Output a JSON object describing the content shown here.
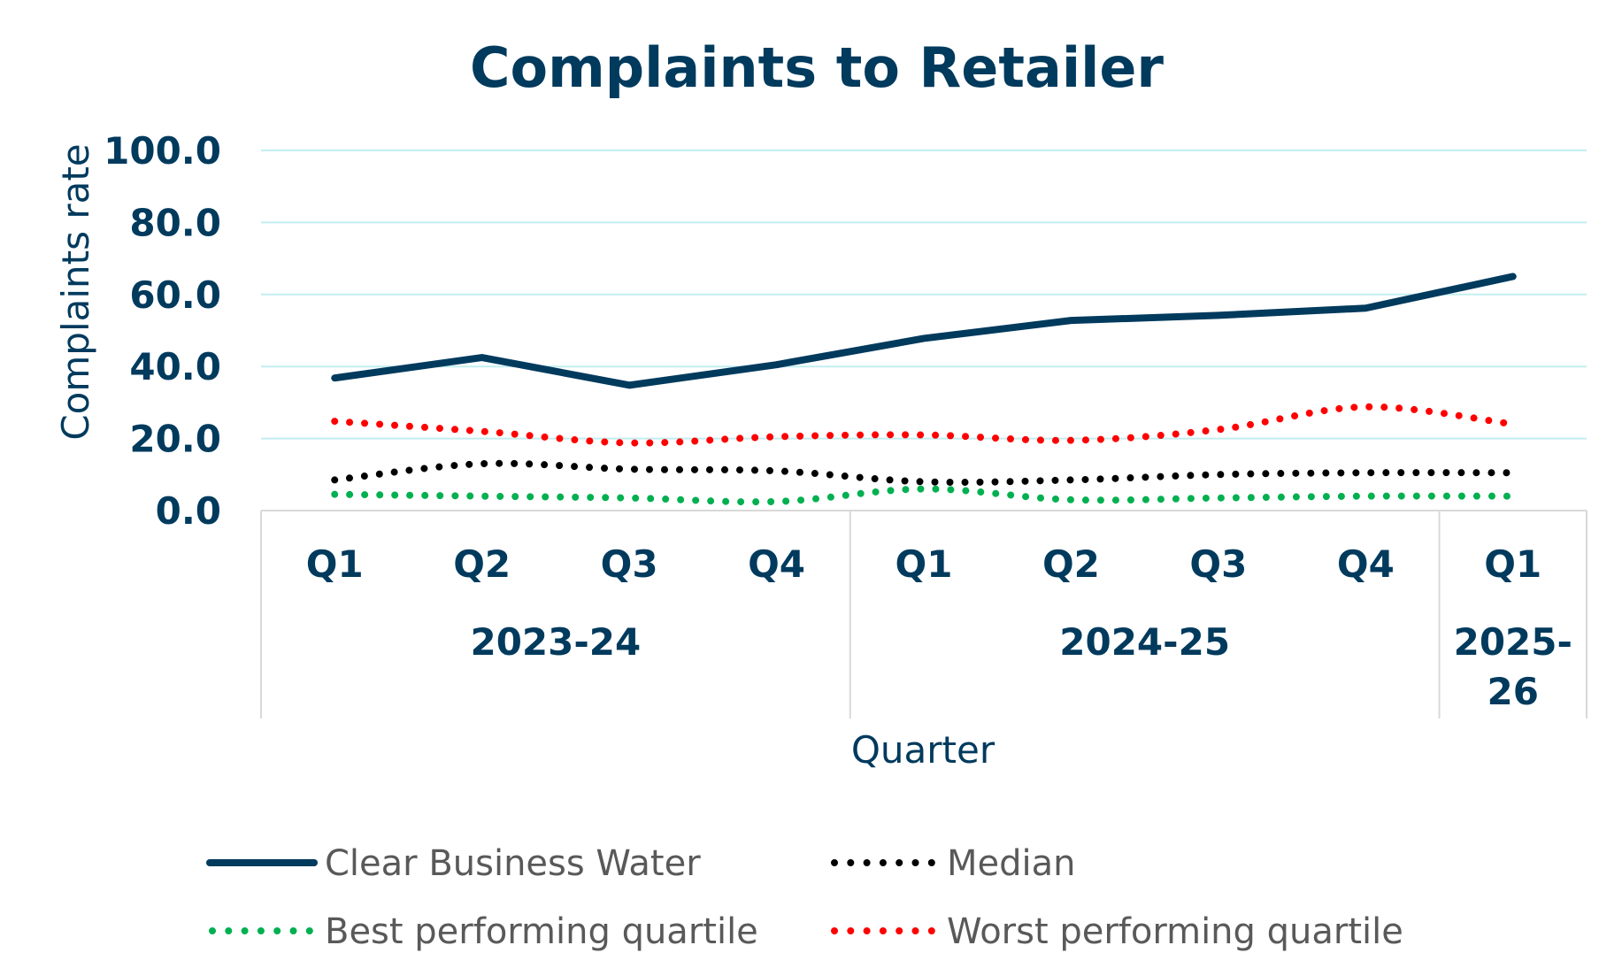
{
  "chart_data": {
    "type": "line",
    "title": "Complaints to Retailer",
    "ylabel": "Complaints rate",
    "xlabel": "Quarter",
    "ylim": [
      0,
      100
    ],
    "yticks": [
      "0.0",
      "20.0",
      "40.0",
      "60.0",
      "80.0",
      "100.0"
    ],
    "ytick_values": [
      0,
      20,
      40,
      60,
      80,
      100
    ],
    "categories": [
      "Q1",
      "Q2",
      "Q3",
      "Q4",
      "Q1",
      "Q2",
      "Q3",
      "Q4",
      "Q1"
    ],
    "groups": [
      {
        "label": "2023-24",
        "count": 4
      },
      {
        "label": "2024-25",
        "count": 4
      },
      {
        "label": "2025-26",
        "label_lines": [
          "2025-",
          "26"
        ],
        "count": 1
      }
    ],
    "grid": true,
    "legend_position": "bottom",
    "series": [
      {
        "name": "Clear Business Water",
        "style": "solid",
        "color": "#003a5d",
        "values": [
          36.8,
          42.5,
          34.8,
          40.5,
          47.8,
          52.8,
          54.2,
          56.2,
          65.0
        ]
      },
      {
        "name": "Median",
        "style": "dotted",
        "color": "#000000",
        "values": [
          8.5,
          13.0,
          11.5,
          11.0,
          8.0,
          8.5,
          10.0,
          10.5,
          10.5
        ]
      },
      {
        "name": "Best performing quartile",
        "style": "dotted",
        "color": "#00b050",
        "values": [
          4.5,
          4.0,
          3.5,
          2.5,
          6.0,
          3.0,
          3.5,
          4.0,
          4.0
        ]
      },
      {
        "name": "Worst performing quartile",
        "style": "dotted",
        "color": "#ff0000",
        "values": [
          24.8,
          22.0,
          18.8,
          20.5,
          21.0,
          19.5,
          22.5,
          28.8,
          24.0
        ]
      }
    ]
  }
}
